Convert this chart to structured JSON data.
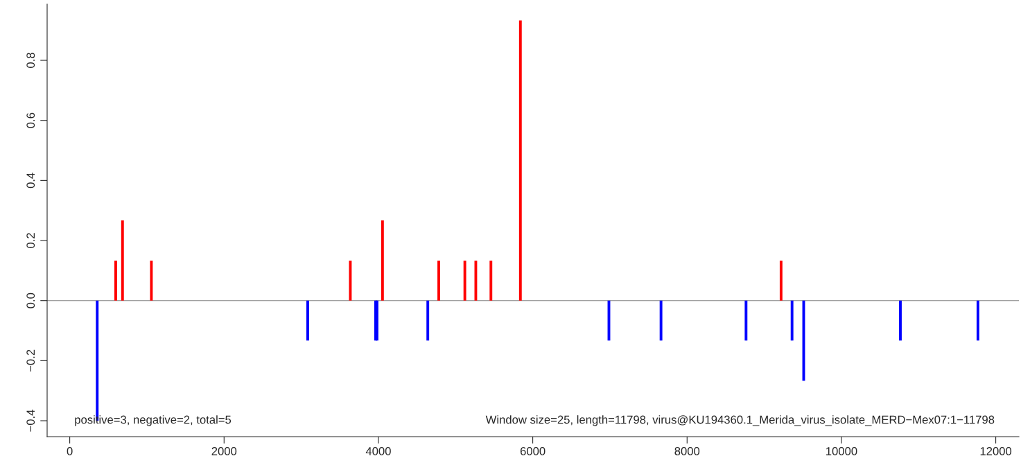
{
  "chart_data": {
    "type": "bar",
    "xlim": [
      -293,
      12300
    ],
    "xticks": [
      0,
      2000,
      4000,
      6000,
      8000,
      10000,
      12000
    ],
    "ylim": [
      -0.453,
      0.987
    ],
    "yticks": [
      {
        "value": -0.4,
        "label": "−0.4"
      },
      {
        "value": -0.2,
        "label": "−0.2"
      },
      {
        "value": 0,
        "label": "0.0"
      },
      {
        "value": 0.2,
        "label": "0.2"
      },
      {
        "value": 0.4,
        "label": "0.4"
      },
      {
        "value": 0.6,
        "label": "0.6"
      },
      {
        "value": 0.8,
        "label": "0.8"
      }
    ],
    "series": [
      {
        "color": "#ff0000",
        "x": [
          596,
          684,
          1058,
          3636,
          4053,
          4782,
          5120,
          5262,
          5458,
          5840,
          9218
        ],
        "values": [
          0.133,
          0.267,
          0.133,
          0.133,
          0.267,
          0.133,
          0.133,
          0.133,
          0.133,
          0.933,
          0.133
        ]
      },
      {
        "color": "#0000ff",
        "x": [
          356,
          3084,
          3964,
          3982,
          4640,
          6987,
          7662,
          8764,
          9360,
          9511,
          10764,
          11769
        ],
        "values": [
          -0.4,
          -0.133,
          -0.133,
          -0.133,
          -0.133,
          -0.133,
          -0.133,
          -0.133,
          -0.133,
          -0.267,
          -0.133,
          -0.133
        ]
      }
    ],
    "ref_lines": [
      {
        "axis": "y",
        "value": 0,
        "color": "#808080"
      }
    ],
    "annotations": [
      "positive=3, negative=2, total=5",
      "Window size=25, length=11798, virus@KU194360.1_Merida_virus_isolate_MERD−Mex07:1−11798"
    ],
    "grid": false,
    "legend": false
  }
}
